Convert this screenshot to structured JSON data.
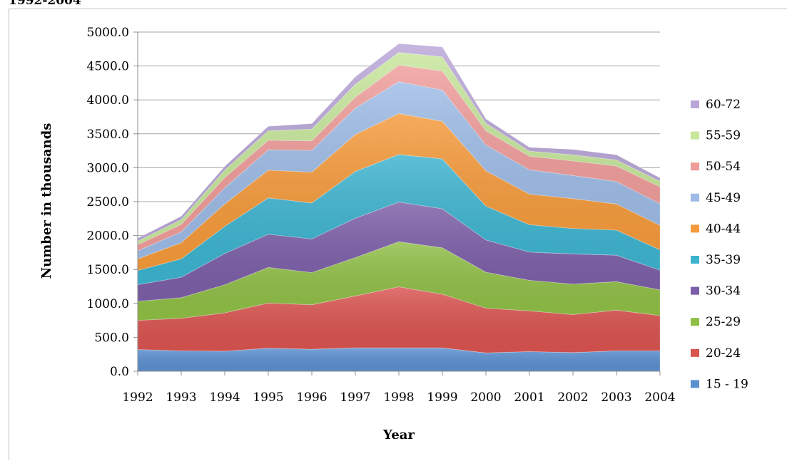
{
  "page": {
    "heading": "1992-2004"
  },
  "chart_data": {
    "type": "area",
    "stacked": true,
    "xlabel": "Year",
    "ylabel": "Number in thousands",
    "ylim": [
      0,
      5000
    ],
    "ytick_step": 500,
    "grid": "horizontal",
    "legend_position": "right",
    "x": [
      "1992",
      "1993",
      "1994",
      "1995",
      "1996",
      "1997",
      "1998",
      "1999",
      "2000",
      "2001",
      "2002",
      "2003",
      "2004"
    ],
    "ytick_labels": [
      "0.0",
      "500.0",
      "1000.0",
      "1500.0",
      "2000.0",
      "2500.0",
      "3000.0",
      "3500.0",
      "4000.0",
      "4500.0",
      "5000.0"
    ],
    "series": [
      {
        "name": "15 - 19",
        "color": "#5b8fd0",
        "values": [
          320,
          300,
          295,
          340,
          325,
          345,
          345,
          345,
          270,
          290,
          275,
          300,
          300
        ]
      },
      {
        "name": "20-24",
        "color": "#d9534f",
        "values": [
          430,
          480,
          565,
          665,
          655,
          765,
          900,
          790,
          660,
          600,
          560,
          600,
          520
        ]
      },
      {
        "name": "25-29",
        "color": "#8fbe45",
        "values": [
          280,
          305,
          415,
          525,
          475,
          565,
          665,
          685,
          530,
          450,
          450,
          420,
          380
        ]
      },
      {
        "name": "30-34",
        "color": "#7b5ea7",
        "values": [
          245,
          300,
          460,
          490,
          495,
          580,
          585,
          575,
          475,
          415,
          445,
          390,
          290
        ]
      },
      {
        "name": "35-39",
        "color": "#3cb3cf",
        "values": [
          210,
          270,
          400,
          535,
          530,
          690,
          700,
          735,
          500,
          405,
          375,
          370,
          300
        ]
      },
      {
        "name": "40-44",
        "color": "#f59a3a",
        "values": [
          170,
          240,
          330,
          410,
          455,
          545,
          605,
          555,
          520,
          450,
          440,
          385,
          360
        ]
      },
      {
        "name": "45-49",
        "color": "#9dbbe6",
        "values": [
          120,
          160,
          240,
          300,
          320,
          390,
          470,
          460,
          380,
          360,
          340,
          330,
          320
        ]
      },
      {
        "name": "50-54",
        "color": "#ef9c9a",
        "values": [
          90,
          110,
          150,
          140,
          140,
          160,
          245,
          280,
          210,
          200,
          215,
          230,
          250
        ]
      },
      {
        "name": "55-59",
        "color": "#c6e69a",
        "values": [
          55,
          70,
          110,
          140,
          175,
          190,
          185,
          210,
          110,
          75,
          90,
          90,
          80
        ]
      },
      {
        "name": "60-72",
        "color": "#b9a6d8",
        "values": [
          40,
          50,
          55,
          65,
          80,
          110,
          130,
          145,
          65,
          55,
          80,
          75,
          50
        ]
      }
    ]
  }
}
